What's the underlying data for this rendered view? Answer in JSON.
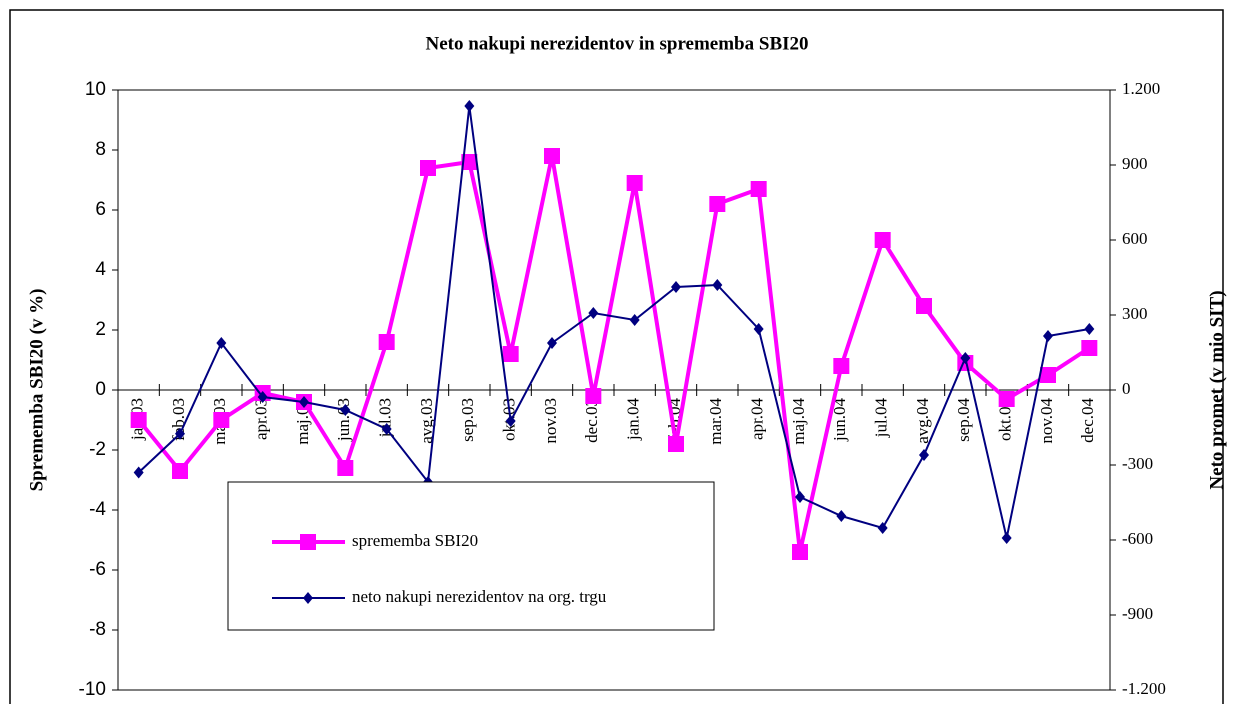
{
  "chart_data": {
    "type": "line",
    "title": "Neto nakupi nerezidentov in sprememba SBI20",
    "ylabel": "Sprememba SBI20 (v %)",
    "y2label": "Neto promet (v mio SIT)",
    "categories": [
      "jan.03",
      "feb.03",
      "mar.03",
      "apr.03",
      "maj.03",
      "jun.03",
      "jul.03",
      "avg.03",
      "sep.03",
      "okt.03",
      "nov.03",
      "dec.03",
      "jan.04",
      "feb.04",
      "mar.04",
      "apr.04",
      "maj.04",
      "jun.04",
      "jul.04",
      "avg.04",
      "sep.04",
      "okt.04",
      "nov.04",
      "dec.04"
    ],
    "series": [
      {
        "name": "sprememba SBI20",
        "color": "#ff00ff",
        "marker": "square",
        "values": [
          -1.0,
          -2.7,
          -1.0,
          -0.1,
          -0.4,
          -2.6,
          1.6,
          7.4,
          7.6,
          1.2,
          7.8,
          -0.2,
          6.9,
          -1.8,
          6.2,
          6.7,
          -5.4,
          0.8,
          5.0,
          2.8,
          0.9,
          -0.3,
          0.5,
          1.4
        ]
      },
      {
        "name": "neto nakupi nerezidentov na org. trgu",
        "color": "#000080",
        "marker": "diamond",
        "axis": "y2",
        "values": [
          -330,
          -175,
          188,
          -28,
          -48,
          -80,
          -156,
          -368,
          1136,
          -124,
          188,
          308,
          280,
          412,
          420,
          244,
          -428,
          -504,
          -552,
          -260,
          128,
          -592,
          216,
          244
        ]
      }
    ],
    "ylim": [
      -10,
      10
    ],
    "yticks": [
      -10,
      -8,
      -6,
      -4,
      -2,
      0,
      2,
      4,
      6,
      8,
      10
    ],
    "y2lim": [
      -1200,
      1200
    ],
    "y2ticks": [
      {
        "value": -1200,
        "label": "-1.200"
      },
      -900,
      -600,
      -300,
      0,
      300,
      600,
      900,
      {
        "value": 1200,
        "label": "1.200"
      }
    ]
  }
}
